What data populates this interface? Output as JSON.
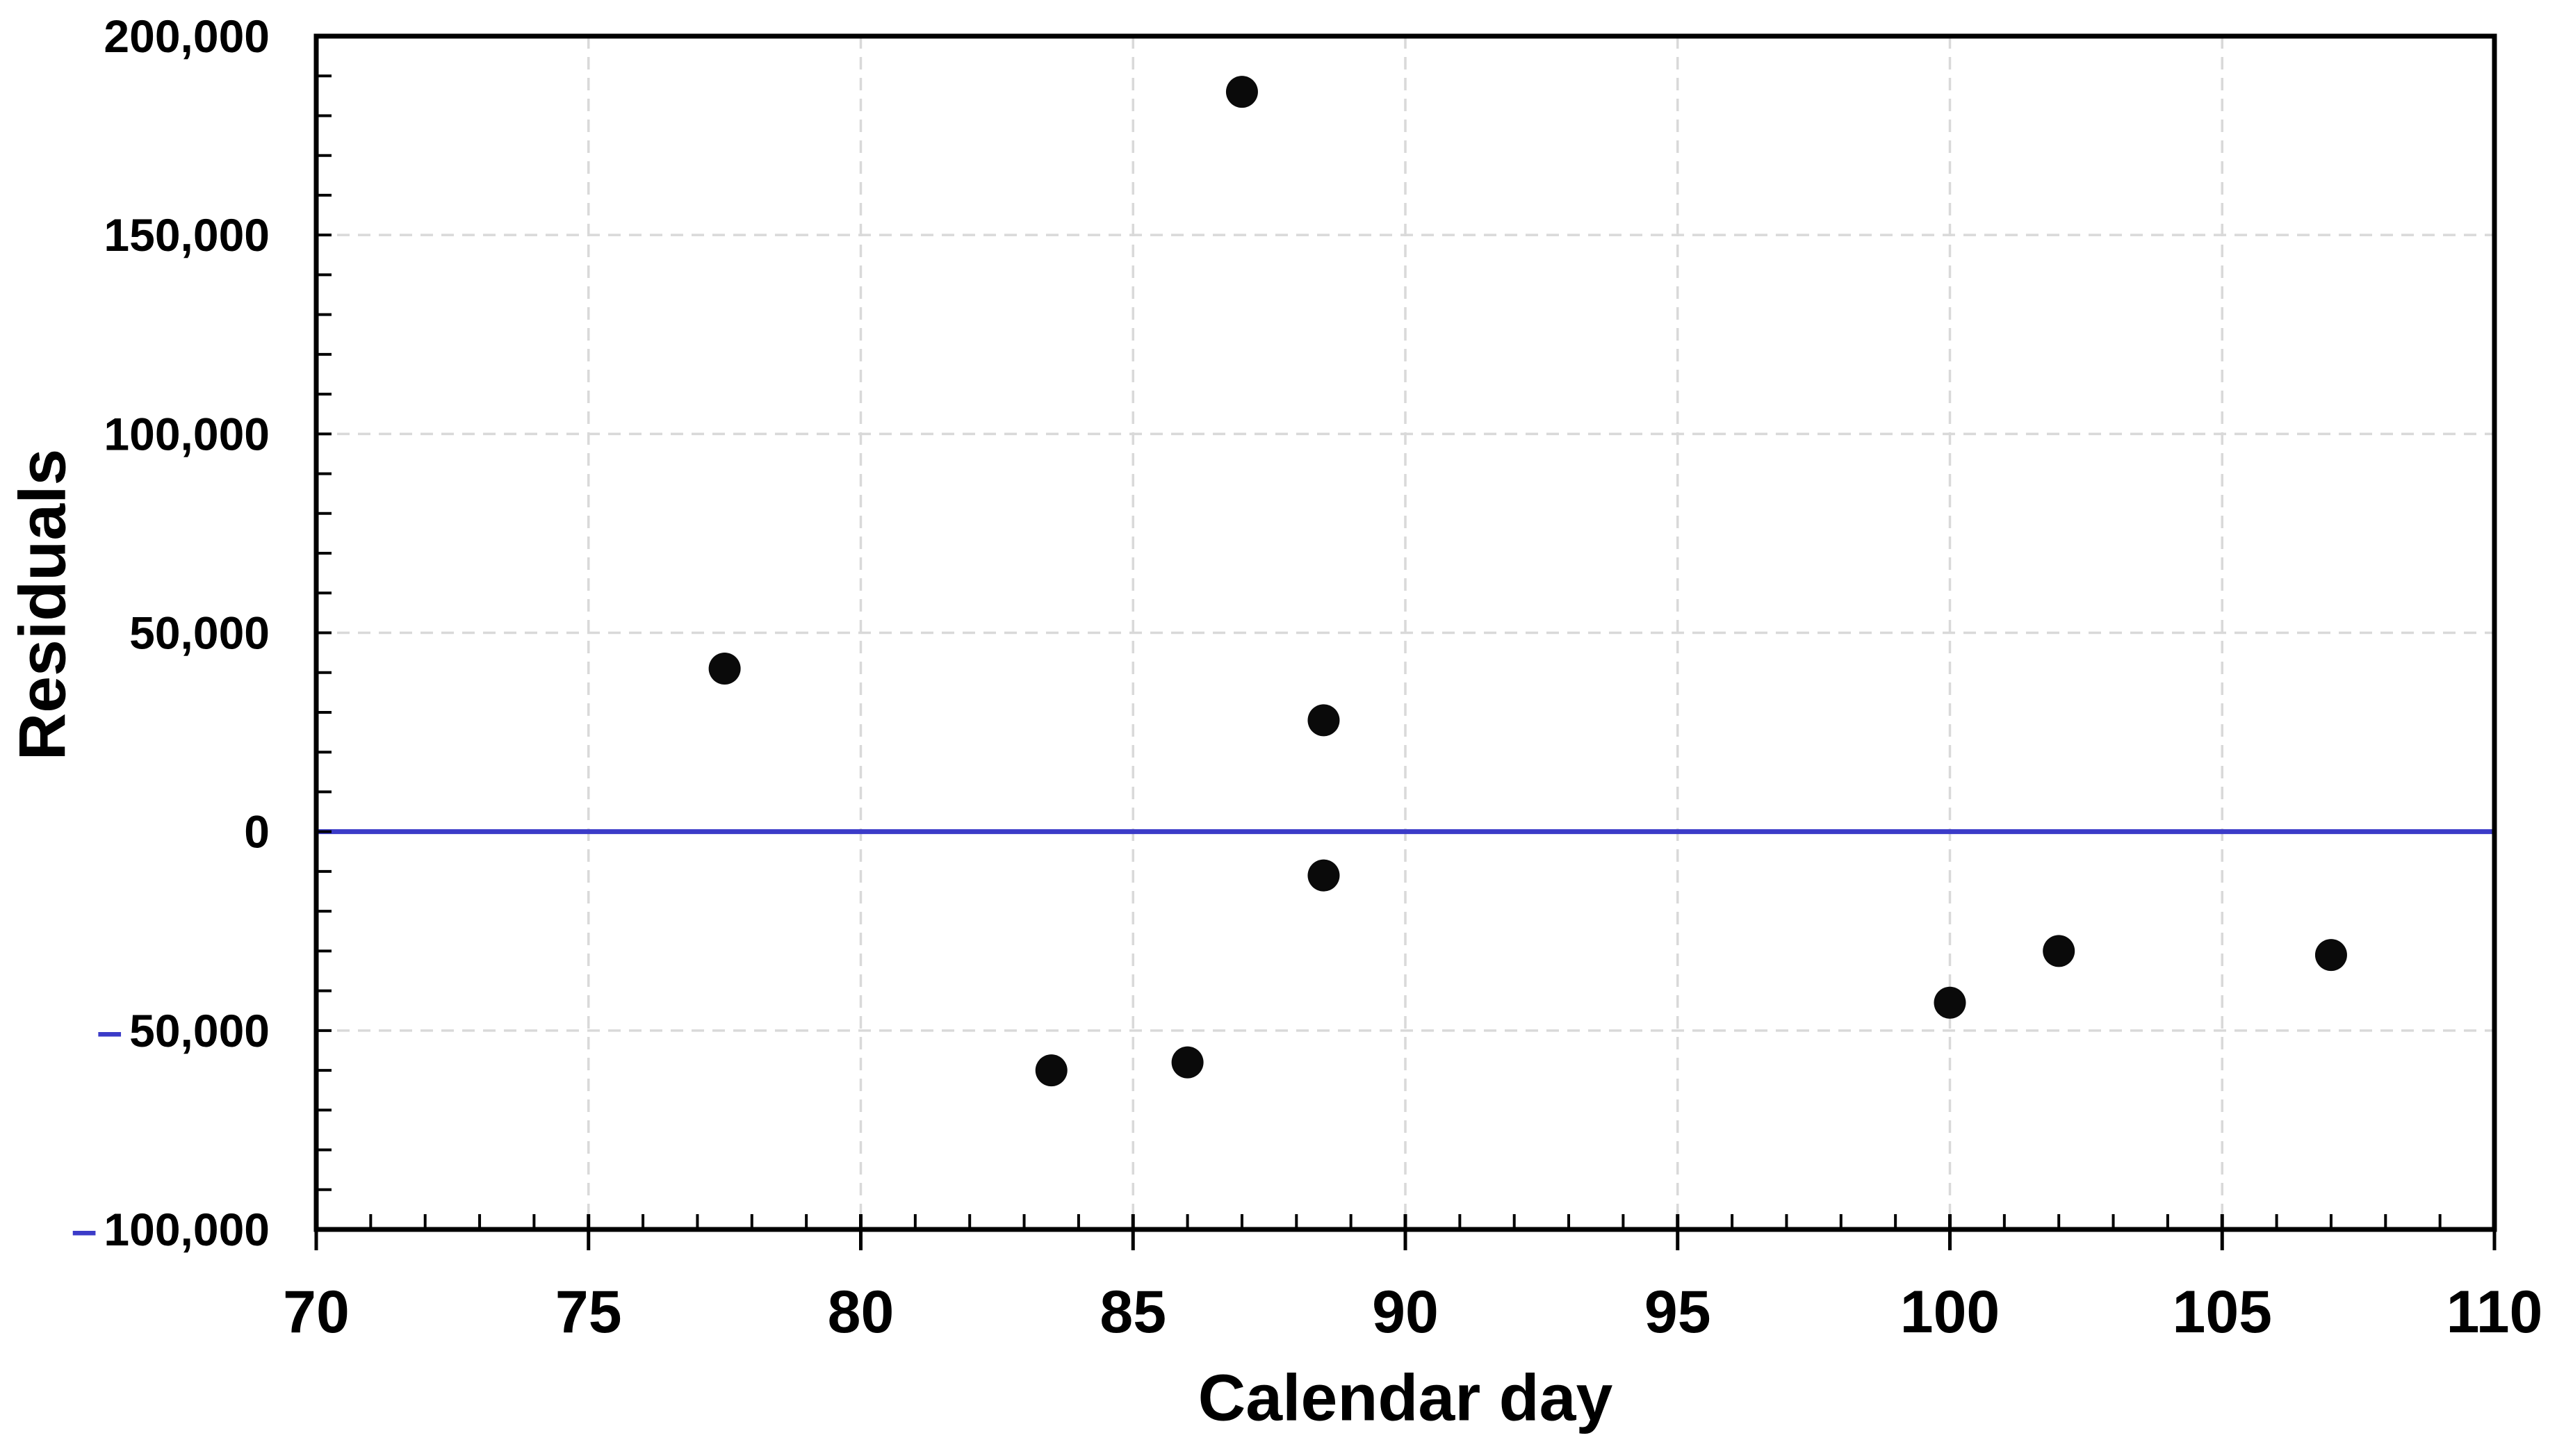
{
  "chart_data": {
    "type": "scatter",
    "title": "",
    "xlabel": "Calendar day",
    "ylabel": "Residuals",
    "xlim": [
      70,
      110
    ],
    "ylim": [
      -100000,
      200000
    ],
    "x_major_ticks": [
      70,
      75,
      80,
      85,
      90,
      95,
      100,
      105,
      110
    ],
    "x_tick_labels": [
      "70",
      "75",
      "80",
      "85",
      "90",
      "95",
      "100",
      "105",
      "110"
    ],
    "x_minor_tick_step": 1,
    "y_major_ticks": [
      200000,
      150000,
      100000,
      50000,
      0,
      -50000,
      -100000
    ],
    "y_tick_labels": [
      "200,000",
      "150,000",
      "100,000",
      "50,000",
      "0",
      "-50,000",
      "-100,000"
    ],
    "y_minor_tick_step": 10000,
    "gridline_values_y": [
      150000,
      100000,
      50000,
      0,
      -50000
    ],
    "gridline_values_x": [
      75,
      80,
      85,
      90,
      95,
      100,
      105
    ],
    "grid_style": "dashed",
    "legend": "none",
    "zero_line": {
      "y": 0
    },
    "points": [
      [
        77.5,
        41000
      ],
      [
        83.5,
        -60000
      ],
      [
        86,
        -58000
      ],
      [
        87,
        186000
      ],
      [
        88.5,
        28000
      ],
      [
        88.5,
        -11000
      ],
      [
        100,
        -43000
      ],
      [
        102,
        -30000
      ],
      [
        107,
        -31000
      ]
    ],
    "colors": {
      "point": "#0a0a0a",
      "zero_line": "#3b3bc8",
      "negative_minus_sign": "#3b3bc8",
      "gridline": "#d9d9d9",
      "axis": "#000000",
      "text": "#000000",
      "background": "#ffffff"
    }
  }
}
